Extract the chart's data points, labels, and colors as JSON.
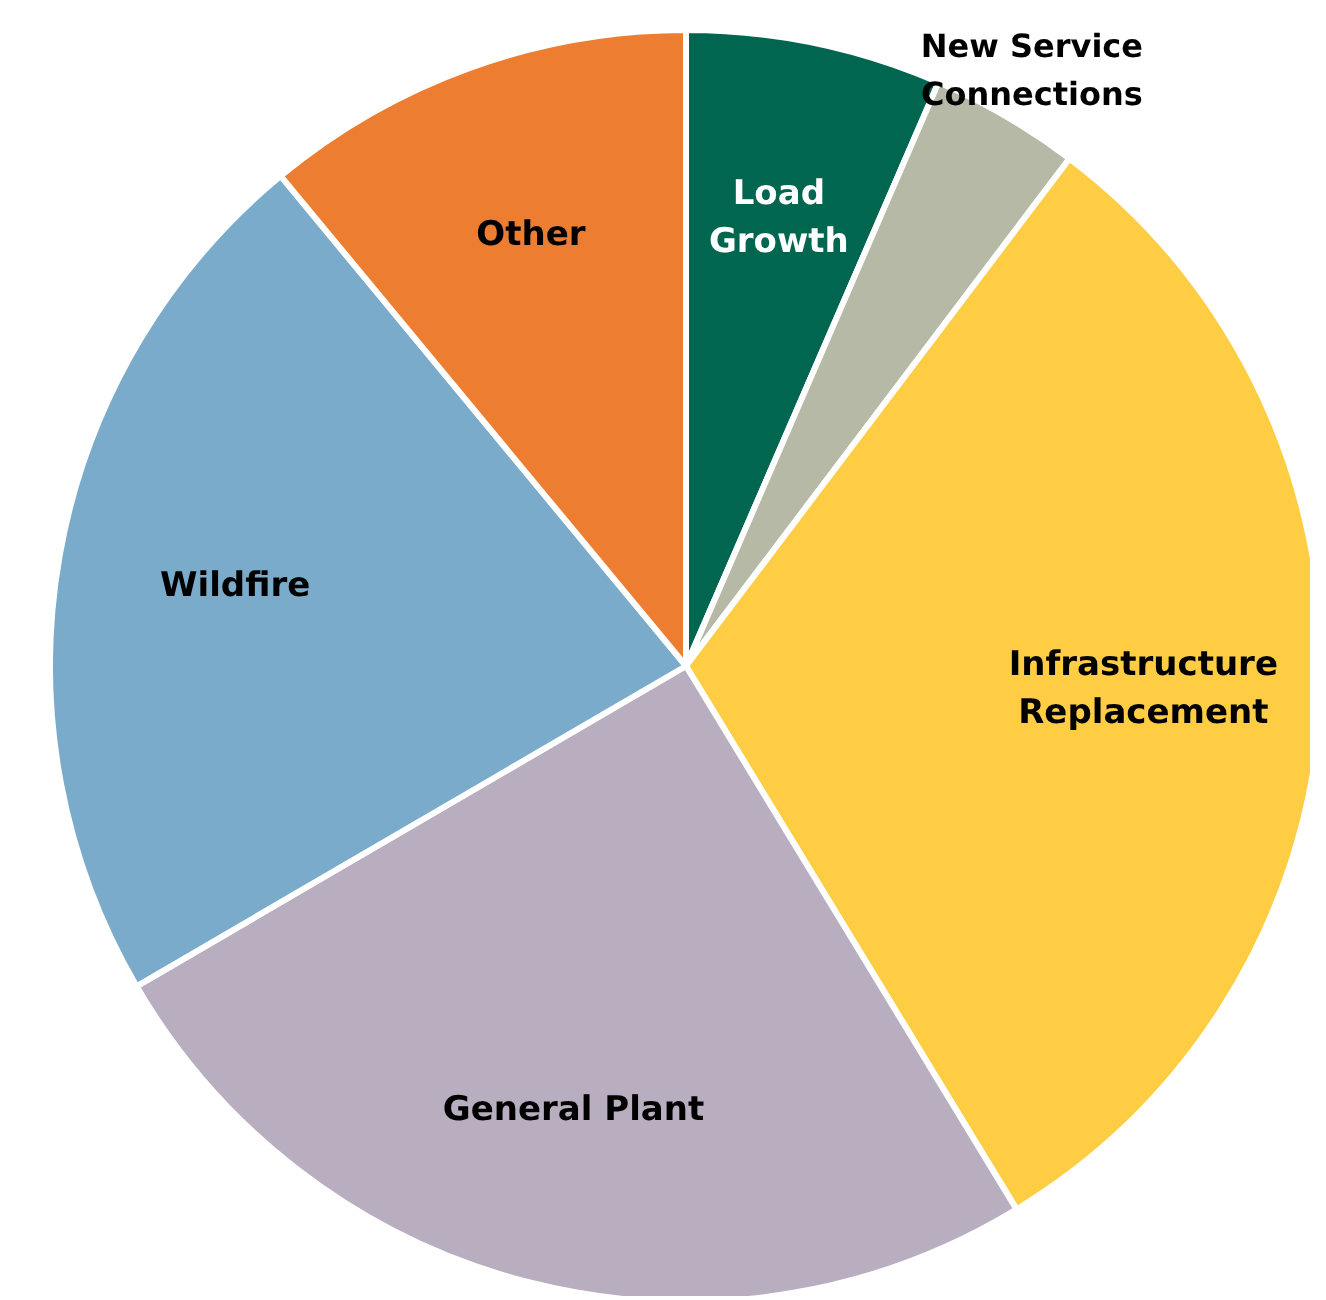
{
  "chart_data": {
    "type": "pie",
    "categories": [
      "Load Growth",
      "New Service Connections",
      "Infrastructure Replacement",
      "General Plant",
      "Wildfire",
      "Other"
    ],
    "values": [
      6.5,
      3.8,
      31,
      25.3,
      22.4,
      11
    ],
    "colors": [
      "#00664f",
      "#b5b9a5",
      "#ffcd44",
      "#b8aec0",
      "#7aabcb",
      "#ed7d31"
    ]
  }
}
